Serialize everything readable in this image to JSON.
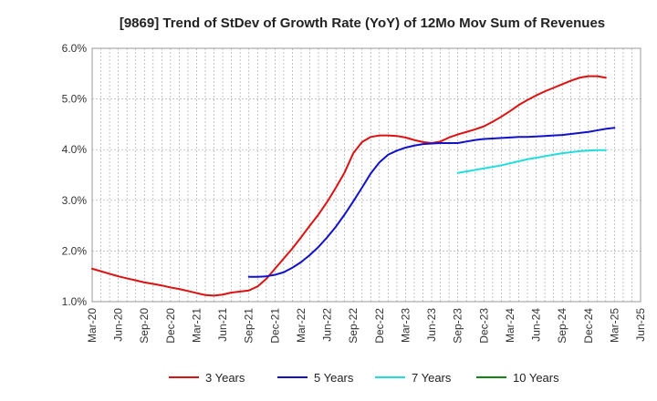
{
  "chart_data": {
    "type": "line",
    "title": "[9869]  Trend of StDev of Growth Rate (YoY) of 12Mo Mov Sum of Revenues",
    "xlabel": "",
    "ylabel": "",
    "ylim": [
      1.0,
      6.0
    ],
    "y_ticks": [
      1.0,
      2.0,
      3.0,
      4.0,
      5.0,
      6.0
    ],
    "y_tick_labels": [
      "1.0%",
      "2.0%",
      "3.0%",
      "4.0%",
      "5.0%",
      "6.0%"
    ],
    "x_ticks": [
      "Mar-20",
      "Jun-20",
      "Sep-20",
      "Dec-20",
      "Mar-21",
      "Jun-21",
      "Sep-21",
      "Dec-21",
      "Mar-22",
      "Jun-22",
      "Sep-22",
      "Dec-22",
      "Mar-23",
      "Jun-23",
      "Sep-23",
      "Dec-23",
      "Mar-24",
      "Jun-24",
      "Sep-24",
      "Dec-24",
      "Mar-25",
      "Jun-25"
    ],
    "grid": true,
    "legend_position": "bottom",
    "series": [
      {
        "name": "3 Years",
        "color": "#dd1111",
        "start_index": 0,
        "values": [
          1.65,
          1.6,
          1.55,
          1.5,
          1.46,
          1.42,
          1.38,
          1.35,
          1.32,
          1.28,
          1.25,
          1.21,
          1.17,
          1.13,
          1.12,
          1.14,
          1.18,
          1.2,
          1.22,
          1.3,
          1.45,
          1.65,
          1.85,
          2.05,
          2.27,
          2.5,
          2.72,
          2.97,
          3.25,
          3.55,
          3.93,
          4.15,
          4.25,
          4.28,
          4.28,
          4.27,
          4.24,
          4.19,
          4.15,
          4.13,
          4.16,
          4.24,
          4.3,
          4.35,
          4.4,
          4.46,
          4.55,
          4.65,
          4.76,
          4.88,
          4.98,
          5.07,
          5.15,
          5.22,
          5.29,
          5.36,
          5.42,
          5.45,
          5.45,
          5.42
        ]
      },
      {
        "name": "5 Years",
        "color": "#1111cc",
        "start_index": 18,
        "values": [
          1.49,
          1.49,
          1.5,
          1.53,
          1.58,
          1.67,
          1.78,
          1.92,
          2.08,
          2.27,
          2.48,
          2.72,
          2.98,
          3.25,
          3.53,
          3.75,
          3.9,
          3.98,
          4.04,
          4.08,
          4.11,
          4.12,
          4.13,
          4.13,
          4.13,
          4.16,
          4.19,
          4.21,
          4.22,
          4.23,
          4.24,
          4.25,
          4.25,
          4.26,
          4.27,
          4.28,
          4.29,
          4.31,
          4.33,
          4.35,
          4.38,
          4.41,
          4.43
        ]
      },
      {
        "name": "7 Years",
        "color": "#22dddd",
        "start_index": 42,
        "values": [
          3.54,
          3.57,
          3.6,
          3.63,
          3.66,
          3.69,
          3.73,
          3.77,
          3.81,
          3.84,
          3.87,
          3.9,
          3.93,
          3.95,
          3.97,
          3.98,
          3.99,
          3.99
        ]
      },
      {
        "name": "10 Years",
        "color": "#118811",
        "start_index": 0,
        "values": []
      }
    ]
  }
}
